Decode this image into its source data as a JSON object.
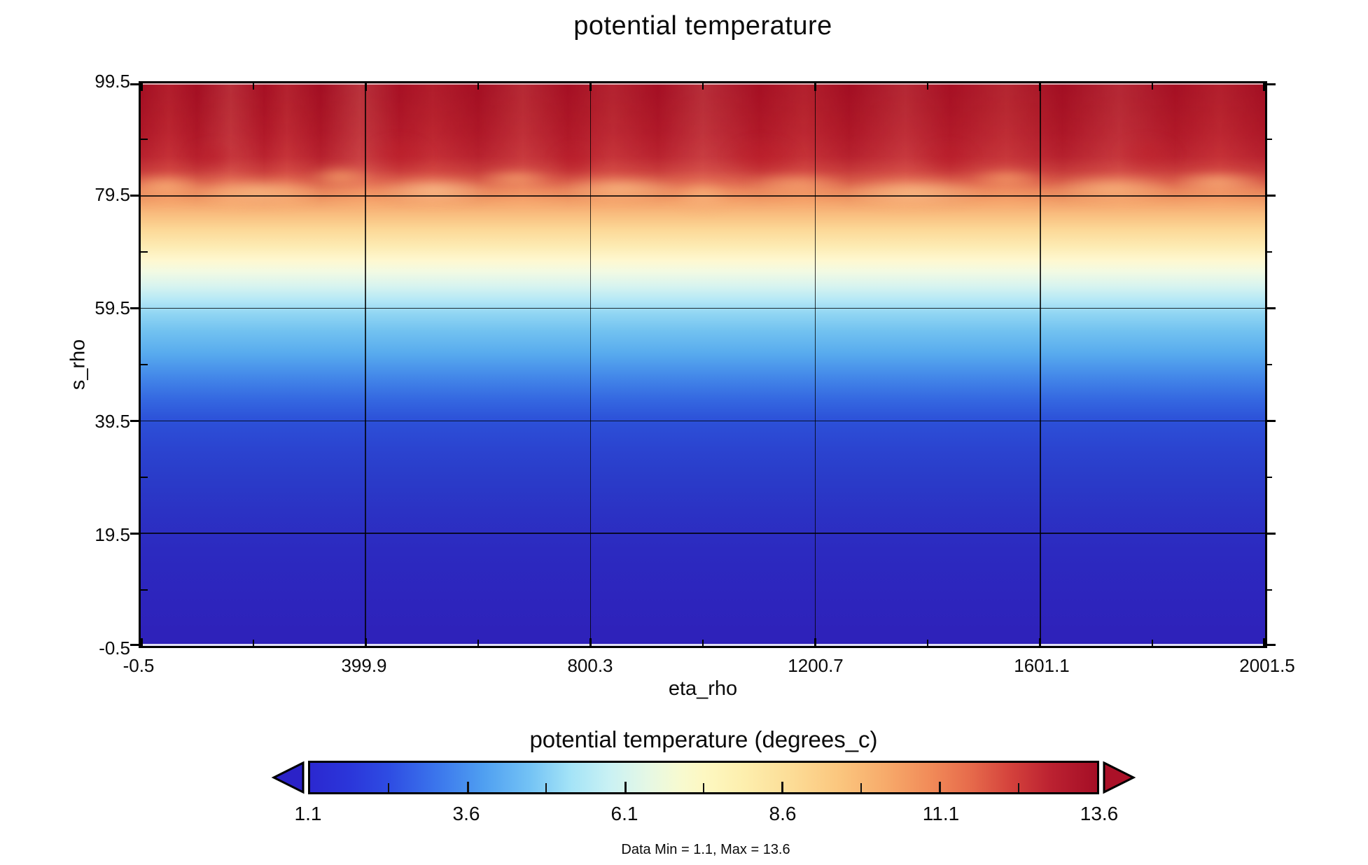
{
  "title": "potential temperature",
  "chart_data": {
    "type": "heatmap",
    "title": "potential temperature",
    "xlabel": "eta_rho",
    "ylabel": "s_rho",
    "x_ticks": [
      "-0.5",
      "399.9",
      "800.3",
      "1200.7",
      "1601.1",
      "2001.5"
    ],
    "y_ticks": [
      "99.5",
      "79.5",
      "59.5",
      "39.5",
      "19.5",
      "-0.5"
    ],
    "xlim": [
      -0.5,
      2001.5
    ],
    "ylim": [
      -0.5,
      99.5
    ],
    "grid": true,
    "grid_interval_fraction": 0.2,
    "colorbar": {
      "title": "potential temperature (degrees_c)",
      "tick_labels": [
        "1.1",
        "3.6",
        "6.1",
        "8.6",
        "11.1",
        "13.6"
      ],
      "min": 1.1,
      "max": 13.6,
      "extend": "both",
      "orientation": "horizontal",
      "position": "bottom"
    },
    "colormap_stops": [
      {
        "value": 1.1,
        "color": "#2b28d0"
      },
      {
        "value": 2.35,
        "color": "#3463e8"
      },
      {
        "value": 3.6,
        "color": "#57a9f2"
      },
      {
        "value": 4.85,
        "color": "#aee7f7"
      },
      {
        "value": 6.1,
        "color": "#ddf6ea"
      },
      {
        "value": 7.35,
        "color": "#fdf3b8"
      },
      {
        "value": 8.6,
        "color": "#fccf8c"
      },
      {
        "value": 9.85,
        "color": "#f7a468"
      },
      {
        "value": 11.1,
        "color": "#ea6a4c"
      },
      {
        "value": 12.35,
        "color": "#c62f37"
      },
      {
        "value": 13.6,
        "color": "#a50e26"
      }
    ],
    "footnote": "Data Min = 1.1, Max = 13.6",
    "approx_vertical_profile": {
      "note": "field is nearly uniform along eta_rho; values estimated from colorbar",
      "s_rho": [
        99.5,
        92.0,
        87.0,
        82.0,
        79.5,
        74.0,
        69.0,
        64.0,
        59.5,
        49.5,
        39.5,
        29.5,
        19.5,
        9.5,
        -0.5
      ],
      "temperature_c": [
        13.6,
        13.3,
        12.0,
        10.4,
        9.6,
        7.9,
        6.4,
        5.5,
        4.8,
        3.8,
        3.1,
        2.6,
        2.2,
        1.9,
        1.7
      ]
    },
    "description": "Warm surface layer (>12 degC, dark red) above s_rho ~ 85 with a wavy, cloud-like base; smooth decrease through orange/yellow near s_rho 79.5, pale cyan near 65, to cold royal blue (~1.5-2 degC) at s_rho = -0.5."
  }
}
